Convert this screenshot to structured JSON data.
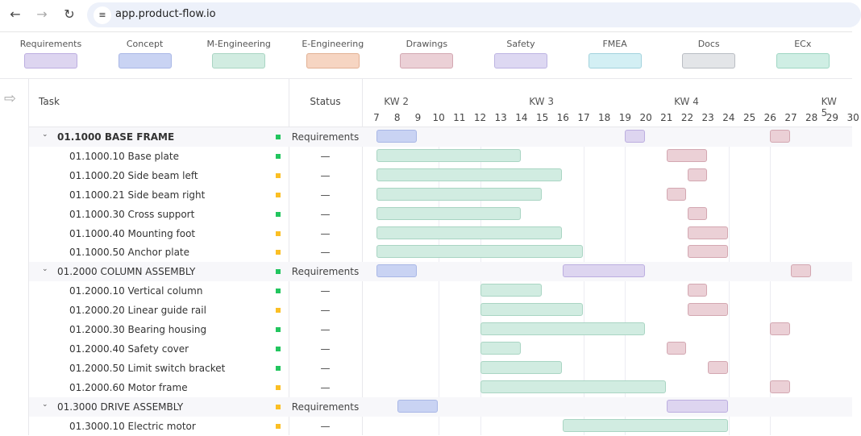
{
  "browser": {
    "url": "app.product-flow.io",
    "back_icon": "arrow-left",
    "forward_icon": "arrow-right",
    "reload_icon": "reload",
    "site_settings_icon": "tune"
  },
  "legend": [
    {
      "label": "Requirements",
      "fill": "#ddd5f0",
      "border": "#bcaee0"
    },
    {
      "label": "Concept",
      "fill": "#c9d3f3",
      "border": "#a9b7e6"
    },
    {
      "label": "M-Engineering",
      "fill": "#d1ece1",
      "border": "#a9d5c3"
    },
    {
      "label": "E-Engineering",
      "fill": "#f6d5c2",
      "border": "#e2b194"
    },
    {
      "label": "Drawings",
      "fill": "#ebd0d6",
      "border": "#d3a7b1"
    },
    {
      "label": "Safety",
      "fill": "#ddd8f2",
      "border": "#bdb4e2"
    },
    {
      "label": "FMEA",
      "fill": "#d3eff4",
      "border": "#a3d3dd"
    },
    {
      "label": "Docs",
      "fill": "#e3e5e8",
      "border": "#b9bdc3"
    },
    {
      "label": "ECx",
      "fill": "#cfeee4",
      "border": "#9fd6c3"
    }
  ],
  "header": {
    "task": "Task",
    "status": "Status",
    "weeks": [
      {
        "label": "KW 2",
        "day": 8
      },
      {
        "label": "KW 3",
        "day": 15
      },
      {
        "label": "KW 4",
        "day": 22
      },
      {
        "label": "KW 5",
        "day": 29
      }
    ],
    "days": [
      7,
      8,
      9,
      10,
      11,
      12,
      13,
      14,
      15,
      16,
      17,
      18,
      19,
      20,
      21,
      22,
      23,
      24,
      25,
      26,
      27,
      28,
      29,
      30
    ]
  },
  "status_colors": {
    "green": "#22c55e",
    "yellow": "#fbbf24"
  },
  "rows": [
    {
      "type": "group",
      "name": "01.1000 BASE FRAME",
      "status_color": "green",
      "status": "Requirements",
      "bars": [
        {
          "phase": "Concept",
          "start": 7,
          "end": 9
        },
        {
          "phase": "Requirements",
          "start": 19,
          "end": 20
        },
        {
          "phase": "Drawings",
          "start": 26,
          "end": 27
        }
      ]
    },
    {
      "type": "child",
      "name": "01.1000.10 Base plate",
      "status_color": "green",
      "status": "—",
      "bars": [
        {
          "phase": "M-Engineering",
          "start": 7,
          "end": 14
        },
        {
          "phase": "Drawings",
          "start": 21,
          "end": 23
        }
      ]
    },
    {
      "type": "child",
      "name": "01.1000.20 Side beam left",
      "status_color": "yellow",
      "status": "—",
      "bars": [
        {
          "phase": "M-Engineering",
          "start": 7,
          "end": 16
        },
        {
          "phase": "Drawings",
          "start": 22,
          "end": 23
        }
      ]
    },
    {
      "type": "child",
      "name": "01.1000.21 Side beam right",
      "status_color": "yellow",
      "status": "—",
      "bars": [
        {
          "phase": "M-Engineering",
          "start": 7,
          "end": 15
        },
        {
          "phase": "Drawings",
          "start": 21,
          "end": 22
        }
      ]
    },
    {
      "type": "child",
      "name": "01.1000.30 Cross support",
      "status_color": "green",
      "status": "—",
      "bars": [
        {
          "phase": "M-Engineering",
          "start": 7,
          "end": 14
        },
        {
          "phase": "Drawings",
          "start": 22,
          "end": 23
        }
      ]
    },
    {
      "type": "child",
      "name": "01.1000.40 Mounting foot",
      "status_color": "yellow",
      "status": "—",
      "bars": [
        {
          "phase": "M-Engineering",
          "start": 7,
          "end": 16
        },
        {
          "phase": "Drawings",
          "start": 22,
          "end": 24
        }
      ]
    },
    {
      "type": "child",
      "name": "01.1000.50 Anchor plate",
      "status_color": "yellow",
      "status": "—",
      "bars": [
        {
          "phase": "M-Engineering",
          "start": 7,
          "end": 17
        },
        {
          "phase": "Drawings",
          "start": 22,
          "end": 24
        }
      ]
    },
    {
      "type": "group",
      "name": "01.2000 COLUMN ASSEMBLY",
      "status_color": "green",
      "status": "Requirements",
      "bars": [
        {
          "phase": "Concept",
          "start": 7,
          "end": 9
        },
        {
          "phase": "Requirements",
          "start": 16,
          "end": 20
        },
        {
          "phase": "Drawings",
          "start": 27,
          "end": 28
        }
      ]
    },
    {
      "type": "child",
      "name": "01.2000.10 Vertical column",
      "status_color": "green",
      "status": "—",
      "bars": [
        {
          "phase": "M-Engineering",
          "start": 12,
          "end": 15
        },
        {
          "phase": "Drawings",
          "start": 22,
          "end": 23
        }
      ]
    },
    {
      "type": "child",
      "name": "01.2000.20 Linear guide rail",
      "status_color": "yellow",
      "status": "—",
      "bars": [
        {
          "phase": "M-Engineering",
          "start": 12,
          "end": 17
        },
        {
          "phase": "Drawings",
          "start": 22,
          "end": 24
        }
      ]
    },
    {
      "type": "child",
      "name": "01.2000.30 Bearing housing",
      "status_color": "green",
      "status": "—",
      "bars": [
        {
          "phase": "M-Engineering",
          "start": 12,
          "end": 20
        },
        {
          "phase": "Drawings",
          "start": 26,
          "end": 27
        }
      ]
    },
    {
      "type": "child",
      "name": "01.2000.40 Safety cover",
      "status_color": "green",
      "status": "—",
      "bars": [
        {
          "phase": "M-Engineering",
          "start": 12,
          "end": 14
        },
        {
          "phase": "Drawings",
          "start": 21,
          "end": 22
        }
      ]
    },
    {
      "type": "child",
      "name": "01.2000.50 Limit switch bracket",
      "status_color": "green",
      "status": "—",
      "bars": [
        {
          "phase": "M-Engineering",
          "start": 12,
          "end": 16
        },
        {
          "phase": "Drawings",
          "start": 23,
          "end": 24
        }
      ]
    },
    {
      "type": "child",
      "name": "01.2000.60 Motor frame",
      "status_color": "yellow",
      "status": "—",
      "bars": [
        {
          "phase": "M-Engineering",
          "start": 12,
          "end": 21
        },
        {
          "phase": "Drawings",
          "start": 26,
          "end": 27
        }
      ]
    },
    {
      "type": "group",
      "name": "01.3000 DRIVE ASSEMBLY",
      "status_color": "yellow",
      "status": "Requirements",
      "bars": [
        {
          "phase": "Concept",
          "start": 8,
          "end": 10
        },
        {
          "phase": "Requirements",
          "start": 21,
          "end": 24
        }
      ]
    },
    {
      "type": "child",
      "name": "01.3000.10 Electric motor",
      "status_color": "yellow",
      "status": "—",
      "bars": [
        {
          "phase": "M-Engineering",
          "start": 16,
          "end": 24
        }
      ]
    }
  ]
}
